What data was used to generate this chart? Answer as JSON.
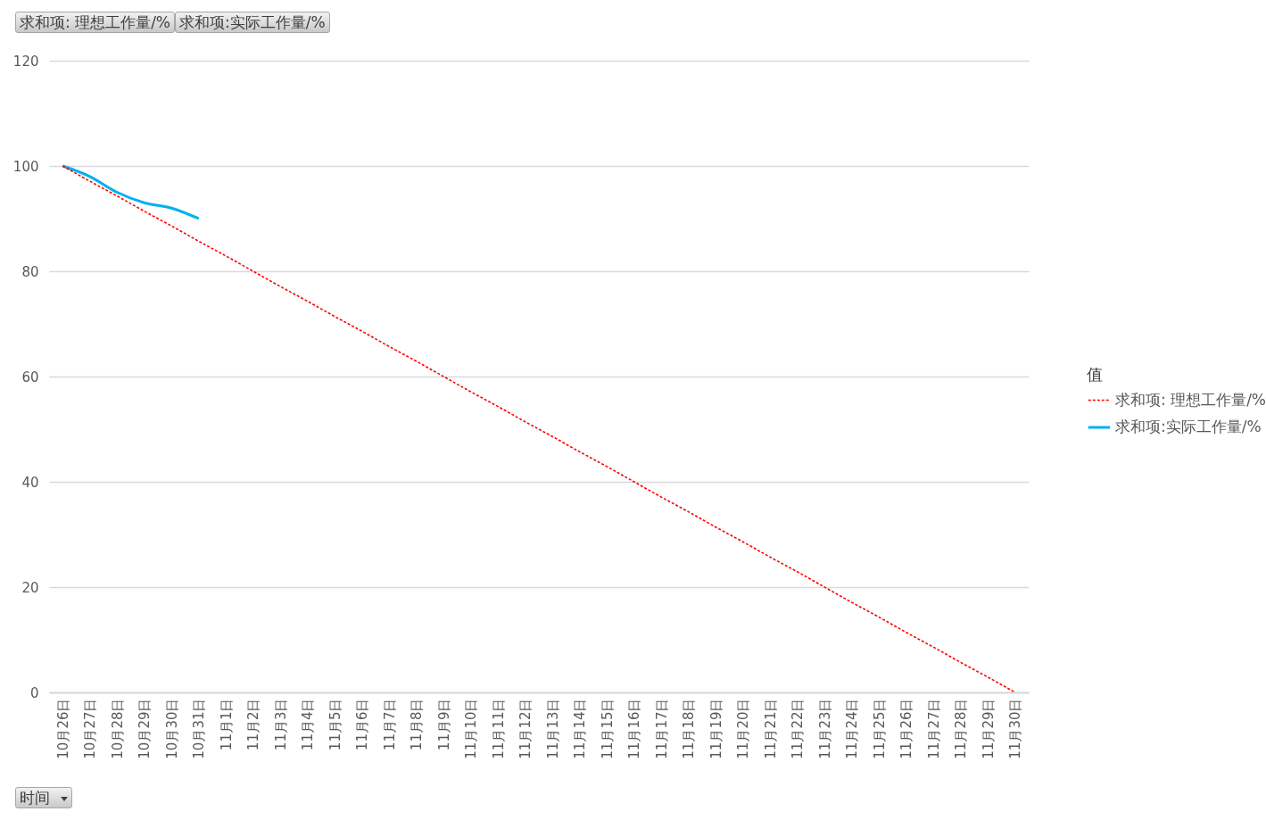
{
  "chart_data": {
    "type": "line",
    "xlabel": "时间",
    "legend_title": "值",
    "legend": "right",
    "grid": "y",
    "marker": "none",
    "annotations": [
      "求和项: 理想工作量/%",
      "求和项:实际工作量/%"
    ],
    "categories": [
      "10月26日",
      "10月27日",
      "10月28日",
      "10月29日",
      "10月30日",
      "10月31日",
      "11月1日",
      "11月2日",
      "11月3日",
      "11月4日",
      "11月5日",
      "11月6日",
      "11月7日",
      "11月8日",
      "11月9日",
      "11月10日",
      "11月11日",
      "11月12日",
      "11月13日",
      "11月14日",
      "11月15日",
      "11月16日",
      "11月17日",
      "11月18日",
      "11月19日",
      "11月20日",
      "11月21日",
      "11月22日",
      "11月23日",
      "11月24日",
      "11月25日",
      "11月26日",
      "11月27日",
      "11月28日",
      "11月29日",
      "11月30日"
    ],
    "ylim": [
      0,
      120
    ],
    "yticks": [
      0,
      20,
      40,
      60,
      80,
      100,
      120
    ],
    "series": [
      {
        "name": "求和项: 理想工作量/%",
        "color": "#ff0000",
        "line_style": "dashed",
        "values": [
          100,
          97.1,
          94.3,
          91.4,
          88.6,
          85.7,
          82.9,
          80,
          77.1,
          74.3,
          71.4,
          68.6,
          65.7,
          62.9,
          60,
          57.1,
          54.3,
          51.4,
          48.6,
          45.7,
          42.9,
          40,
          37.1,
          34.3,
          31.4,
          28.6,
          25.7,
          22.9,
          20,
          17.1,
          14.3,
          11.4,
          8.6,
          5.7,
          2.9,
          0
        ]
      },
      {
        "name": "求和项:实际工作量/%",
        "color": "#00b0f0",
        "line_style": "solid",
        "values": [
          100,
          98,
          95,
          93,
          92,
          90,
          null,
          null,
          null,
          null,
          null,
          null,
          null,
          null,
          null,
          null,
          null,
          null,
          null,
          null,
          null,
          null,
          null,
          null,
          null,
          null,
          null,
          null,
          null,
          null,
          null,
          null,
          null,
          null,
          null,
          null
        ]
      }
    ]
  }
}
